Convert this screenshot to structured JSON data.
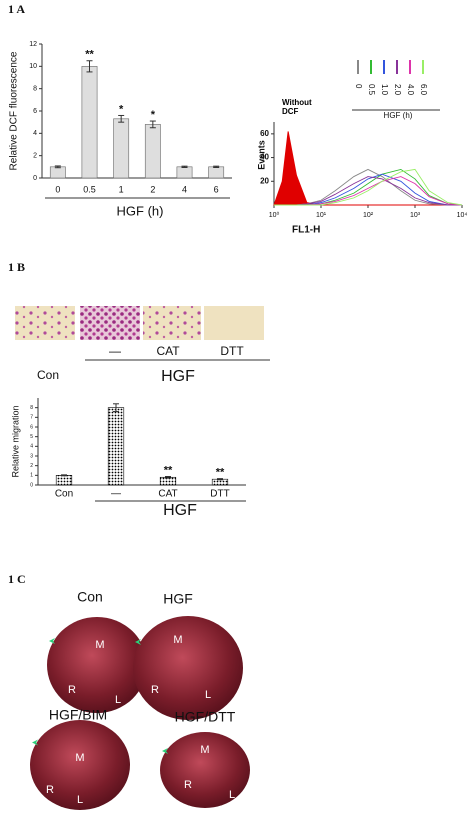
{
  "panels": [
    "1 A",
    "1 B",
    "1 C"
  ],
  "chart_data": [
    {
      "type": "bar",
      "categories": [
        "0",
        "0.5",
        "1",
        "2",
        "4",
        "6"
      ],
      "values": [
        1,
        10,
        5.3,
        4.8,
        1,
        1
      ],
      "errors": [
        0.08,
        0.5,
        0.3,
        0.3,
        0.06,
        0.06
      ],
      "significance": [
        null,
        "**",
        "*",
        "*",
        null,
        null
      ],
      "color": "#dedede",
      "y_label": "Relative DCF fluorescence",
      "x_label": "HGF (h)",
      "ylim": [
        0,
        12
      ],
      "yticks": [
        0,
        2,
        4,
        6,
        8,
        10,
        12
      ]
    },
    {
      "type": "line",
      "x": [
        1,
        1.5,
        2,
        3,
        5,
        10,
        20,
        50,
        100,
        200,
        500,
        1000,
        2000,
        5000,
        10000
      ],
      "x_scale": "log",
      "xlim": [
        1,
        10000
      ],
      "xticks": [
        {
          "value": 1,
          "label": "10⁰"
        },
        {
          "value": 10,
          "label": "10¹"
        },
        {
          "value": 100,
          "label": "10²"
        },
        {
          "value": 1000,
          "label": "10³"
        },
        {
          "value": 10000,
          "label": "10⁴"
        }
      ],
      "ylim": [
        0,
        70
      ],
      "yticks": [
        20,
        40,
        60
      ],
      "y_label": "Events",
      "x_label": "FL1-H",
      "legend_title": "HGF (h)",
      "series": [
        {
          "name": "Without DCF",
          "color": "#e00000",
          "filled": true,
          "values": [
            0,
            20,
            62,
            25,
            2,
            0,
            0,
            0,
            0,
            0,
            0,
            0,
            0,
            0,
            0
          ]
        },
        {
          "name": "0",
          "color": "#888888",
          "values": [
            0,
            0,
            0,
            0,
            1,
            4,
            12,
            24,
            30,
            24,
            12,
            4,
            1,
            0,
            0
          ]
        },
        {
          "name": "0.5",
          "color": "#33bb33",
          "values": [
            0,
            0,
            0,
            0,
            0,
            1,
            4,
            10,
            18,
            26,
            30,
            22,
            8,
            1,
            0
          ]
        },
        {
          "name": "1.0",
          "color": "#3355dd",
          "values": [
            0,
            0,
            0,
            0,
            0,
            2,
            6,
            14,
            22,
            26,
            20,
            10,
            3,
            0,
            0
          ]
        },
        {
          "name": "2.0",
          "color": "#883399",
          "values": [
            0,
            0,
            0,
            0,
            1,
            3,
            9,
            18,
            24,
            22,
            14,
            6,
            2,
            0,
            0
          ]
        },
        {
          "name": "4.0",
          "color": "#dd33aa",
          "values": [
            0,
            0,
            0,
            0,
            0,
            1,
            3,
            8,
            14,
            20,
            24,
            18,
            7,
            1,
            0
          ]
        },
        {
          "name": "6.0",
          "color": "#99ee66",
          "values": [
            0,
            0,
            0,
            0,
            0,
            0,
            2,
            6,
            12,
            20,
            28,
            30,
            12,
            2,
            0
          ]
        }
      ]
    },
    {
      "type": "bar",
      "categories": [
        "Con",
        "—",
        "CAT",
        "DTT"
      ],
      "values": [
        1,
        8,
        0.8,
        0.6
      ],
      "errors": [
        0.05,
        0.4,
        0.08,
        0.06
      ],
      "significance": [
        null,
        null,
        "**",
        "**"
      ],
      "color": "#111111",
      "y_label": "Relative migration",
      "group_label": "HGF",
      "ylim": [
        0,
        9
      ],
      "yticks": [
        0,
        1,
        2,
        3,
        4,
        5,
        6,
        7,
        8
      ]
    }
  ],
  "photos": [
    {
      "title": "Con",
      "labels": [
        "M",
        "R",
        "L"
      ]
    },
    {
      "title": "HGF",
      "labels": [
        "M",
        "R",
        "L"
      ]
    },
    {
      "title": "HGF/BIM",
      "labels": [
        "M",
        "R",
        "L"
      ]
    },
    {
      "title": "HGF/DTT",
      "labels": [
        "M",
        "R",
        "L"
      ]
    }
  ]
}
